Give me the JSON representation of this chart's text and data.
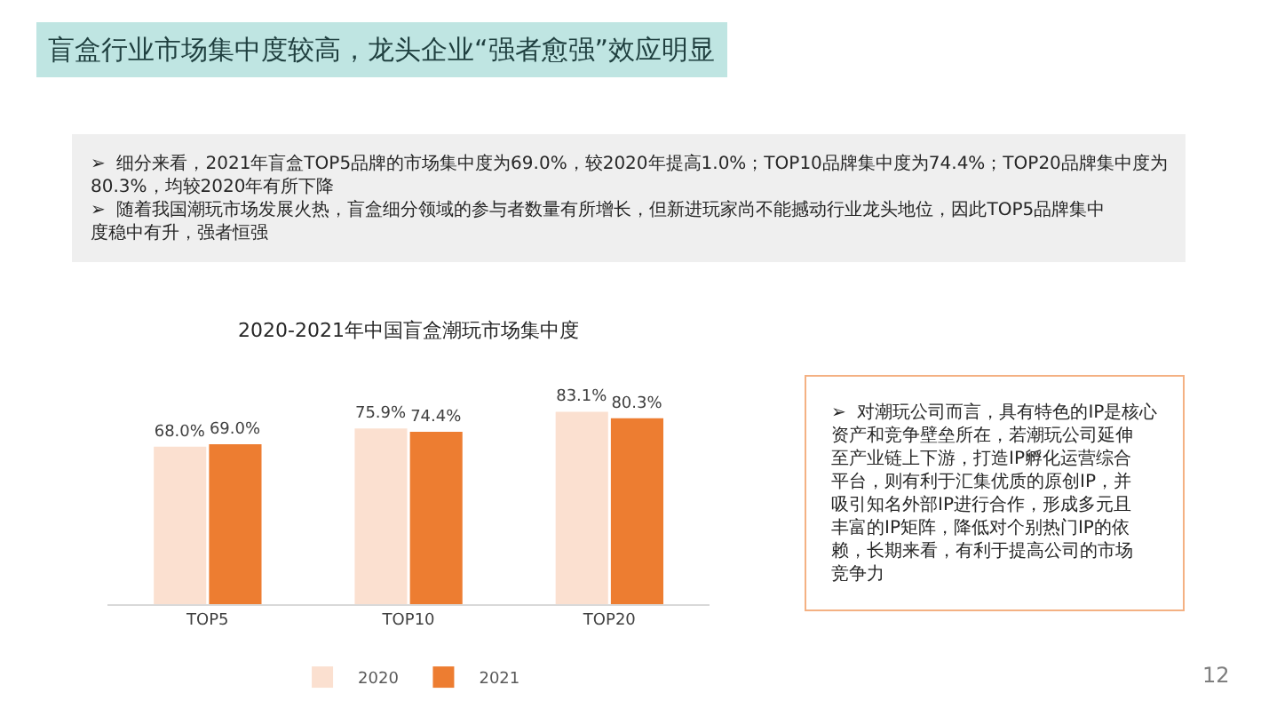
{
  "chart_data": {
    "type": "bar",
    "title": "2020-2021年中国盲盒潮玩市场集中度",
    "categories": [
      "TOP5",
      "TOP10",
      "TOP20"
    ],
    "series": [
      {
        "name": "2020",
        "color": "#fbe0d0",
        "values": [
          68.0,
          75.9,
          83.1
        ],
        "value_labels": [
          "68.0%",
          "75.9%",
          "83.1%"
        ]
      },
      {
        "name": "2021",
        "color": "#ed7d31",
        "values": [
          69.0,
          74.4,
          80.3
        ],
        "value_labels": [
          "69.0%",
          "74.4%",
          "80.3%"
        ]
      }
    ],
    "legend": "bottom",
    "annotations": [
      "盲盒行业市场集中度较高，龙头企业“强者愈强”效应明显",
      "➢  细分来看，2021年盲盒TOP5品牌的市场集中度为69.0%，较2020年提高1.0%；TOP10品牌集中度为74.4%；TOP20品牌集中度为80.3%，均较2020年有所下降\n➢  随着我国潮玩市场发展火热，盲盒细分领域的参与者数量有所增长，但新进玩家尚不能撼动行业龙头地位，因此TOP5品牌集中度稳中有升，强者恒强",
      "➢  对潮玩公司而言，具有特色的IP是核心资产和竞争壁垒所在，若潮玩公司延伸至产业链上下游，打造IP孵化运营综合平台，则有利于汇集优质的原创IP，并吸引知名外部IP进行合作，形成多元且丰富的IP矩阵，降低对个别热门IP的依赖，长期来看，有利于提高公司的市场竞争力",
      "12"
    ]
  }
}
